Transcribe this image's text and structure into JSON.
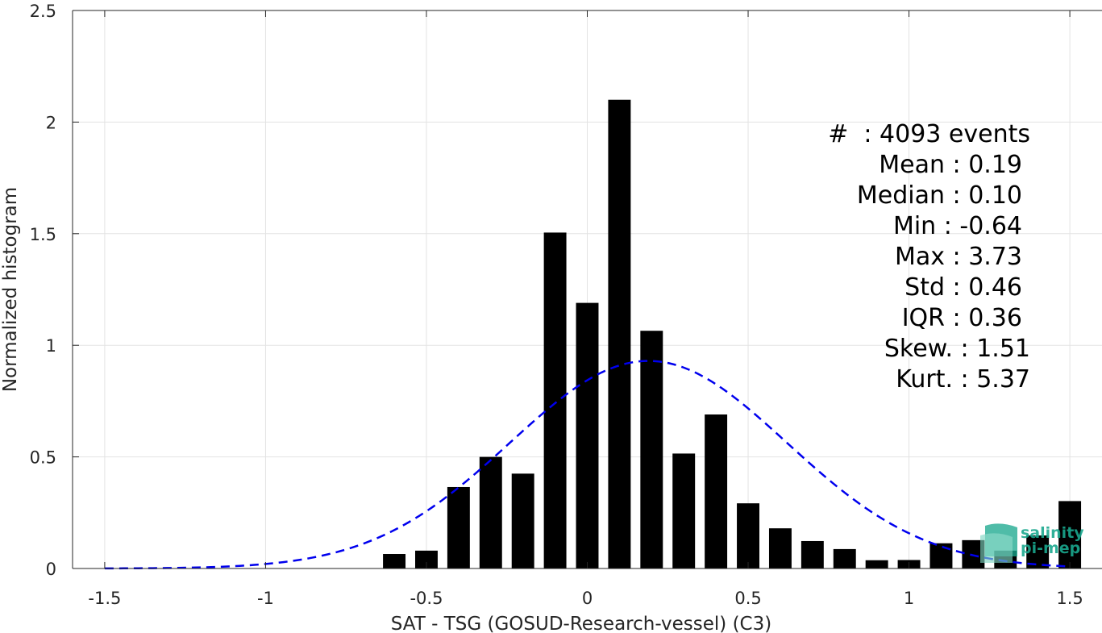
{
  "chart_data": {
    "type": "bar",
    "xlabel": "SAT - TSG (GOSUD-Research-vessel) (C3)",
    "ylabel": "Normalized histogram",
    "xlim": [
      -1.6,
      1.6
    ],
    "ylim": [
      0,
      2.5
    ],
    "grid": true,
    "x_ticks": [
      -1.5,
      -1,
      -0.5,
      0,
      0.5,
      1,
      1.5
    ],
    "x_tick_labels": [
      "-1.5",
      "-1",
      "-0.5",
      "0",
      "0.5",
      "1",
      "1.5"
    ],
    "y_ticks": [
      0,
      0.5,
      1,
      1.5,
      2,
      2.5
    ],
    "y_tick_labels": [
      "0",
      "0.5",
      "1",
      "1.5",
      "2",
      "2.5"
    ],
    "bar_width": 0.07,
    "bars": [
      {
        "x": -0.6,
        "y": 0.065
      },
      {
        "x": -0.5,
        "y": 0.08
      },
      {
        "x": -0.4,
        "y": 0.365
      },
      {
        "x": -0.3,
        "y": 0.5
      },
      {
        "x": -0.2,
        "y": 0.425
      },
      {
        "x": -0.1,
        "y": 1.505
      },
      {
        "x": 0.0,
        "y": 1.19
      },
      {
        "x": 0.1,
        "y": 2.1
      },
      {
        "x": 0.2,
        "y": 1.065
      },
      {
        "x": 0.3,
        "y": 0.515
      },
      {
        "x": 0.4,
        "y": 0.69
      },
      {
        "x": 0.5,
        "y": 0.292
      },
      {
        "x": 0.6,
        "y": 0.18
      },
      {
        "x": 0.7,
        "y": 0.123
      },
      {
        "x": 0.8,
        "y": 0.087
      },
      {
        "x": 0.9,
        "y": 0.037
      },
      {
        "x": 1.0,
        "y": 0.038
      },
      {
        "x": 1.1,
        "y": 0.113
      },
      {
        "x": 1.2,
        "y": 0.127
      },
      {
        "x": 1.3,
        "y": 0.08
      },
      {
        "x": 1.4,
        "y": 0.148
      },
      {
        "x": 1.5,
        "y": 0.302
      }
    ],
    "fit_curve": {
      "type": "gaussian",
      "mean": 0.19,
      "std": 0.43,
      "peak": 0.93,
      "x_range": [
        -1.5,
        1.5
      ],
      "color": "#0000ee",
      "style": "dashed"
    },
    "bar_color": "#000000",
    "stats_lines": [
      "#  : 4093 events",
      "Mean : 0.19",
      "Median : 0.10",
      "Min : -0.64",
      "Max : 3.73",
      "Std : 0.46",
      "IQR : 0.36",
      "Skew. : 1.51",
      "Kurt. : 5.37"
    ]
  },
  "logo": {
    "line1": "salinity",
    "line2": "pi-mep",
    "color": "#1aa88e"
  }
}
